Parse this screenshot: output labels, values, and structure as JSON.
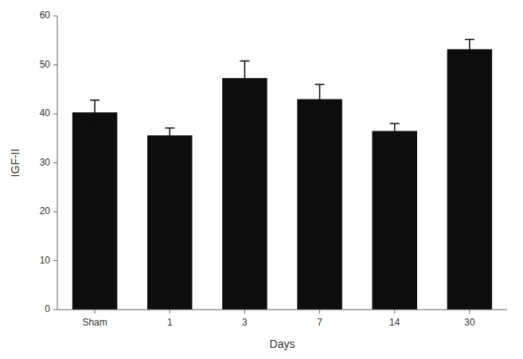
{
  "chart_data": {
    "type": "bar",
    "categories": [
      "Sham",
      "1",
      "3",
      "7",
      "14",
      "30"
    ],
    "values": [
      40.3,
      35.6,
      47.3,
      43.0,
      36.5,
      53.2
    ],
    "errors": [
      2.5,
      1.5,
      3.5,
      3.0,
      1.5,
      2.0
    ],
    "color": "#0d0d0d",
    "xlabel": "Days",
    "ylabel": "IGF-II",
    "ylim": [
      0,
      60
    ],
    "yticks": [
      0,
      10,
      20,
      30,
      40,
      50,
      60
    ],
    "grid": false
  }
}
